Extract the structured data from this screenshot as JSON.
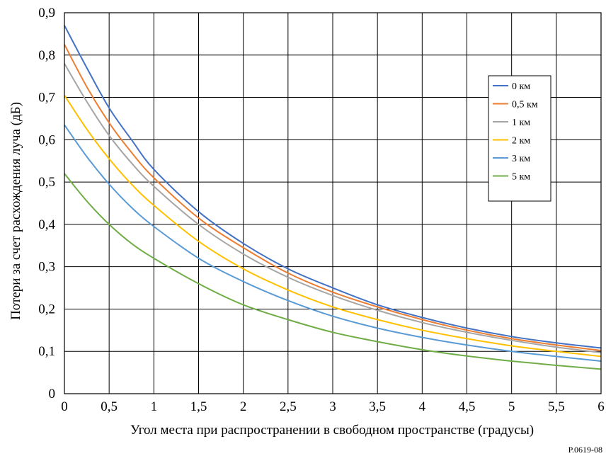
{
  "figure_id": "P.0619-08",
  "chart_data": {
    "type": "line",
    "title": "",
    "xlabel": "Угол места при распространении в свободном пространстве (градусы)",
    "ylabel": "Потери за счет расхождения луча (дБ)",
    "xlim": [
      0,
      6
    ],
    "ylim": [
      0,
      0.9
    ],
    "x_ticks": [
      0,
      0.5,
      1,
      1.5,
      2,
      2.5,
      3,
      3.5,
      4,
      4.5,
      5,
      5.5,
      6
    ],
    "x_tick_labels": [
      "0",
      "0,5",
      "1",
      "1,5",
      "2",
      "2,5",
      "3",
      "3,5",
      "4",
      "4,5",
      "5",
      "5,5",
      "6"
    ],
    "y_ticks": [
      0,
      0.1,
      0.2,
      0.3,
      0.4,
      0.5,
      0.6,
      0.7,
      0.8,
      0.9
    ],
    "y_tick_labels": [
      "0",
      "0,1",
      "0,2",
      "0,3",
      "0,4",
      "0,5",
      "0,6",
      "0,7",
      "0,8",
      "0,9"
    ],
    "grid": true,
    "legend_position": "top-right",
    "x": [
      0,
      0.25,
      0.5,
      0.75,
      1,
      1.5,
      2,
      2.5,
      3,
      3.5,
      4,
      4.5,
      5,
      5.5,
      6
    ],
    "series": [
      {
        "name": "0 км",
        "color": "#4472C4",
        "values": [
          0.87,
          0.77,
          0.675,
          0.6,
          0.53,
          0.43,
          0.355,
          0.295,
          0.25,
          0.21,
          0.18,
          0.155,
          0.135,
          0.12,
          0.108
        ]
      },
      {
        "name": "0,5 км",
        "color": "#ED7D31",
        "values": [
          0.825,
          0.725,
          0.64,
          0.57,
          0.51,
          0.415,
          0.345,
          0.285,
          0.24,
          0.205,
          0.175,
          0.15,
          0.13,
          0.115,
          0.102
        ]
      },
      {
        "name": "1 км",
        "color": "#A5A5A5",
        "values": [
          0.78,
          0.69,
          0.61,
          0.545,
          0.49,
          0.4,
          0.33,
          0.275,
          0.232,
          0.197,
          0.168,
          0.145,
          0.126,
          0.11,
          0.097
        ]
      },
      {
        "name": "2 км",
        "color": "#FFC000",
        "values": [
          0.705,
          0.625,
          0.555,
          0.495,
          0.445,
          0.36,
          0.295,
          0.245,
          0.205,
          0.175,
          0.15,
          0.13,
          0.113,
          0.1,
          0.088
        ]
      },
      {
        "name": "3 км",
        "color": "#5B9BD5",
        "values": [
          0.635,
          0.56,
          0.495,
          0.44,
          0.395,
          0.32,
          0.265,
          0.22,
          0.183,
          0.155,
          0.133,
          0.115,
          0.1,
          0.088,
          0.077
        ]
      },
      {
        "name": "5 км",
        "color": "#70AD47",
        "values": [
          0.52,
          0.455,
          0.4,
          0.355,
          0.32,
          0.26,
          0.21,
          0.175,
          0.145,
          0.123,
          0.104,
          0.089,
          0.077,
          0.067,
          0.058
        ]
      }
    ]
  }
}
